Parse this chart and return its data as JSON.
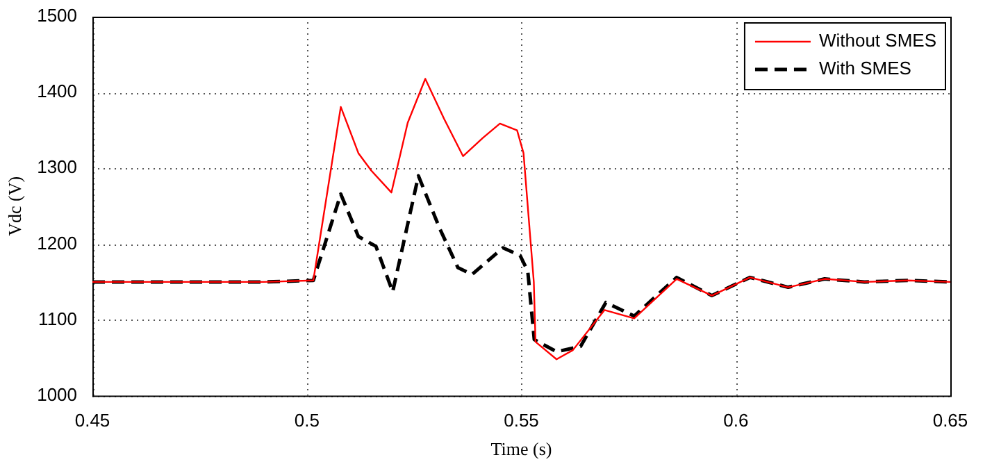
{
  "chart_data": {
    "type": "line",
    "xlabel": "Time (s)",
    "ylabel": "Vdc (V)",
    "xlim": [
      0.45,
      0.65
    ],
    "xticks": [
      0.45,
      0.5,
      0.55,
      0.6,
      0.65
    ],
    "ylim": [
      1000,
      1500
    ],
    "yticks": [
      1000,
      1100,
      1200,
      1300,
      1400,
      1500
    ],
    "grid": true,
    "legend": "top right",
    "marker": "none",
    "series": [
      {
        "name": "Without SMES",
        "color": "#ff0000",
        "line_style": "solid",
        "x": [
          0.45,
          0.47,
          0.49,
          0.5015,
          0.5079,
          0.512,
          0.515,
          0.5197,
          0.5235,
          0.5276,
          0.532,
          0.5364,
          0.541,
          0.545,
          0.549,
          0.5505,
          0.5529,
          0.5533,
          0.5582,
          0.562,
          0.5694,
          0.5763,
          0.5862,
          0.5944,
          0.6033,
          0.6122,
          0.6207,
          0.63,
          0.64,
          0.65
        ],
        "values": [
          1150,
          1150,
          1150,
          1152,
          1381,
          1320,
          1297,
          1268,
          1360,
          1418,
          1365,
          1316,
          1340,
          1359,
          1350,
          1320,
          1150,
          1071,
          1048,
          1060,
          1113,
          1102,
          1154,
          1132,
          1156,
          1143,
          1154,
          1150,
          1152,
          1150
        ]
      },
      {
        "name": "With SMES",
        "color": "#000000",
        "line_style": "dashed",
        "x": [
          0.45,
          0.47,
          0.49,
          0.5015,
          0.5079,
          0.512,
          0.5161,
          0.52,
          0.526,
          0.531,
          0.5352,
          0.5385,
          0.5457,
          0.5497,
          0.5515,
          0.553,
          0.5582,
          0.5638,
          0.5697,
          0.5763,
          0.5862,
          0.5944,
          0.6033,
          0.6122,
          0.6207,
          0.63,
          0.64,
          0.65
        ],
        "values": [
          1150,
          1150,
          1150,
          1152,
          1266,
          1210,
          1197,
          1137,
          1290,
          1220,
          1169,
          1160,
          1195,
          1185,
          1164,
          1074,
          1058,
          1065,
          1123,
          1105,
          1156,
          1132,
          1156,
          1143,
          1154,
          1150,
          1152,
          1150
        ]
      }
    ]
  }
}
